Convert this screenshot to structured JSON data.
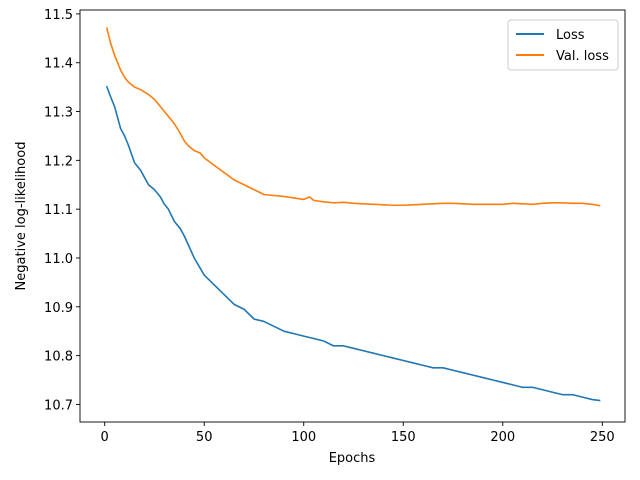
{
  "chart_data": {
    "type": "line",
    "xlabel": "Epochs",
    "ylabel": "Negative log-likelihood",
    "xlim": [
      -12.4,
      261.4
    ],
    "ylim": [
      10.664,
      11.508
    ],
    "xticks": [
      0,
      50,
      100,
      150,
      200,
      250
    ],
    "yticks": [
      10.7,
      10.8,
      10.9,
      11.0,
      11.1,
      11.2,
      11.3,
      11.4,
      11.5
    ],
    "ytick_labels": [
      "10.7",
      "10.8",
      "10.9",
      "11.0",
      "11.1",
      "11.2",
      "11.3",
      "11.4",
      "11.5"
    ],
    "grid": false,
    "legend_position": "top-right",
    "series": [
      {
        "name": "Loss",
        "color": "#1f77b4",
        "x": [
          1,
          3,
          5,
          8,
          10,
          12,
          15,
          18,
          20,
          22,
          25,
          28,
          30,
          32,
          35,
          38,
          40,
          45,
          50,
          55,
          60,
          65,
          70,
          75,
          80,
          85,
          90,
          95,
          100,
          105,
          110,
          115,
          120,
          125,
          130,
          135,
          140,
          145,
          150,
          155,
          160,
          165,
          170,
          175,
          180,
          185,
          190,
          195,
          200,
          205,
          210,
          215,
          220,
          225,
          230,
          235,
          240,
          245,
          249
        ],
        "y": [
          11.352,
          11.33,
          11.31,
          11.265,
          11.25,
          11.23,
          11.195,
          11.18,
          11.165,
          11.15,
          11.14,
          11.125,
          11.11,
          11.1,
          11.075,
          11.06,
          11.045,
          11.0,
          10.965,
          10.945,
          10.925,
          10.905,
          10.895,
          10.875,
          10.87,
          10.86,
          10.85,
          10.845,
          10.84,
          10.835,
          10.83,
          10.82,
          10.82,
          10.815,
          10.81,
          10.805,
          10.8,
          10.795,
          10.79,
          10.785,
          10.78,
          10.775,
          10.775,
          10.77,
          10.765,
          10.76,
          10.755,
          10.75,
          10.745,
          10.74,
          10.735,
          10.735,
          10.73,
          10.725,
          10.72,
          10.72,
          10.715,
          10.71,
          10.708
        ]
      },
      {
        "name": "Val. loss",
        "color": "#ff7f0e",
        "x": [
          1,
          3,
          5,
          8,
          10,
          12,
          15,
          18,
          20,
          22,
          25,
          28,
          30,
          32,
          35,
          38,
          40,
          42,
          45,
          48,
          50,
          55,
          60,
          65,
          70,
          75,
          80,
          85,
          90,
          95,
          100,
          103,
          105,
          110,
          115,
          120,
          125,
          130,
          135,
          140,
          145,
          150,
          155,
          160,
          165,
          170,
          175,
          180,
          185,
          190,
          195,
          200,
          205,
          210,
          215,
          220,
          225,
          230,
          235,
          240,
          245,
          249
        ],
        "y": [
          11.472,
          11.44,
          11.415,
          11.385,
          11.37,
          11.36,
          11.35,
          11.345,
          11.34,
          11.335,
          11.325,
          11.31,
          11.3,
          11.29,
          11.275,
          11.255,
          11.24,
          11.23,
          11.22,
          11.215,
          11.205,
          11.19,
          11.175,
          11.16,
          11.15,
          11.14,
          11.13,
          11.128,
          11.126,
          11.123,
          11.12,
          11.125,
          11.118,
          11.115,
          11.113,
          11.114,
          11.112,
          11.111,
          11.11,
          11.109,
          11.108,
          11.108,
          11.109,
          11.11,
          11.111,
          11.112,
          11.112,
          11.111,
          11.11,
          11.11,
          11.11,
          11.11,
          11.112,
          11.111,
          11.11,
          11.112,
          11.113,
          11.113,
          11.112,
          11.112,
          11.11,
          11.107
        ]
      }
    ]
  }
}
